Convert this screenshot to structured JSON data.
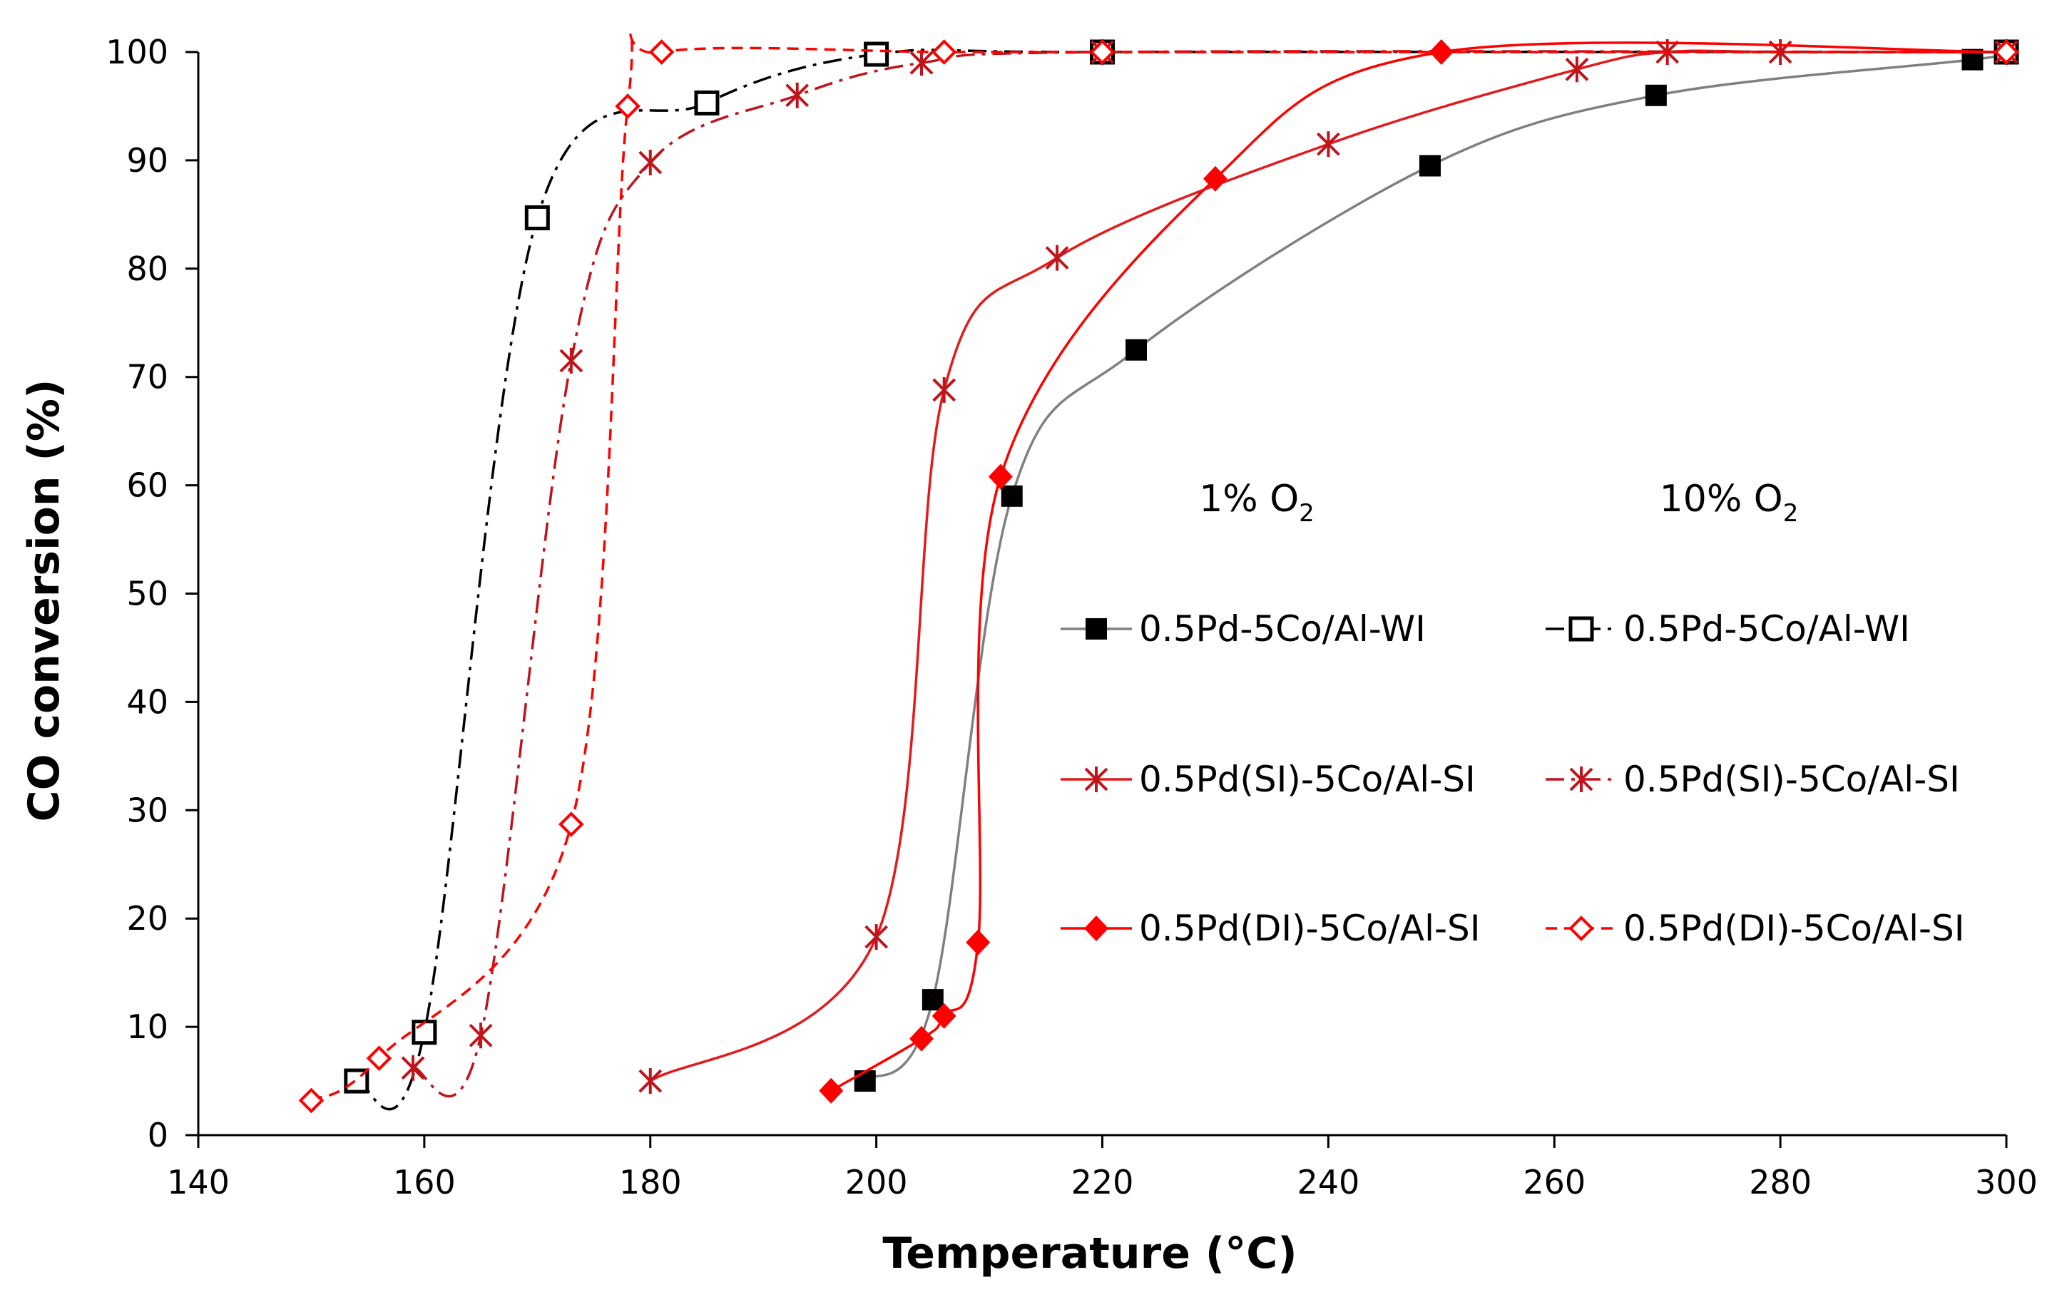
{
  "chart_data": {
    "type": "line",
    "xlabel": "Temperature (°C)",
    "ylabel": "CO conversion (%)",
    "xlim": [
      140,
      300
    ],
    "ylim": [
      0,
      100
    ],
    "xticks": [
      140,
      160,
      180,
      200,
      220,
      240,
      260,
      280,
      300
    ],
    "yticks": [
      0,
      10,
      20,
      30,
      40,
      50,
      60,
      70,
      80,
      90,
      100
    ],
    "grid": false,
    "legend_headers": [
      {
        "text": "1% O",
        "sub": "2"
      },
      {
        "text": "10% O",
        "sub": "2"
      }
    ],
    "series": [
      {
        "name": "0.5Pd-5Co/Al-WI",
        "group": "1% O2",
        "color": "#808080",
        "marker_color": "#000000",
        "marker": "square-filled",
        "dash": "solid",
        "x": [
          199,
          205,
          212,
          223,
          249,
          269,
          297,
          300
        ],
        "y": [
          5,
          12.5,
          59,
          72.5,
          89.5,
          96,
          99.3,
          100
        ]
      },
      {
        "name": "0.5Pd-5Co/Al-WI",
        "group": "10% O2",
        "color": "#000000",
        "marker_color": "#000000",
        "marker": "square-open",
        "dash": "dashdot",
        "x": [
          154,
          160,
          170,
          185,
          200,
          220,
          300
        ],
        "y": [
          5,
          9.5,
          84.7,
          95.3,
          99.8,
          100,
          100
        ]
      },
      {
        "name": "0.5Pd(SI)-5Co/Al-SI",
        "group": "1% O2",
        "color": "#e31a1c",
        "marker_color": "#c0141b",
        "marker": "star",
        "dash": "solid",
        "x": [
          180,
          200,
          206,
          216,
          240,
          262,
          270,
          280,
          300
        ],
        "y": [
          5,
          18.3,
          68.8,
          81,
          91.5,
          98.4,
          100,
          100,
          100
        ]
      },
      {
        "name": "0.5Pd(SI)-5Co/Al-SI",
        "group": "10% O2",
        "color": "#c0141b",
        "marker_color": "#c0141b",
        "marker": "star",
        "dash": "dashdot",
        "x": [
          159,
          165,
          173,
          180,
          193,
          204,
          220,
          300
        ],
        "y": [
          6.2,
          9.2,
          71.5,
          89.8,
          96,
          99,
          100,
          100
        ]
      },
      {
        "name": "0.5Pd(DI)-5Co/Al-SI",
        "group": "1% O2",
        "color": "#ff0000",
        "marker_color": "#ff0000",
        "marker": "diamond-filled",
        "dash": "solid",
        "x": [
          196,
          204,
          206,
          209,
          211,
          230,
          250,
          300
        ],
        "y": [
          4.1,
          8.9,
          11,
          17.8,
          60.8,
          88.3,
          100,
          100
        ]
      },
      {
        "name": "0.5Pd(DI)-5Co/Al-SI",
        "group": "10% O2",
        "color": "#ff0000",
        "marker_color": "#ff0000",
        "marker": "diamond-open",
        "dash": "dashed",
        "x": [
          150,
          156,
          173,
          178,
          181,
          206,
          220,
          300
        ],
        "y": [
          3.2,
          7.1,
          28.7,
          95,
          100,
          100,
          100,
          100
        ]
      }
    ],
    "legend_rows": [
      {
        "left": "0.5Pd-5Co/Al-WI",
        "right": "0.5Pd-5Co/Al-WI"
      },
      {
        "left": "0.5Pd(SI)-5Co/Al-SI",
        "right": "0.5Pd(SI)-5Co/Al-SI"
      },
      {
        "left": "0.5Pd(DI)-5Co/Al-SI",
        "right": "0.5Pd(DI)-5Co/Al-SI"
      }
    ]
  }
}
